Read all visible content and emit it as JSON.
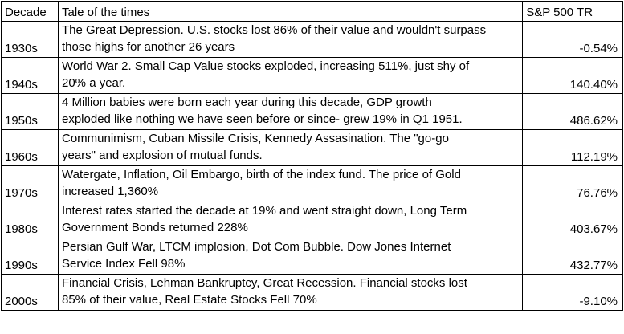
{
  "headers": {
    "decade": "Decade",
    "tale": "Tale of the times",
    "return": "S&P 500 TR"
  },
  "rows": [
    {
      "decade": "1930s",
      "tale_line1": "The Great Depression. U.S. stocks lost 86% of their value and wouldn't surpass",
      "tale_line2": "those highs for another 26 years",
      "return": "-0.54%"
    },
    {
      "decade": "1940s",
      "tale_line1": "World War 2. Small Cap Value stocks exploded, increasing 511%, just shy of",
      "tale_line2": "20% a year.",
      "return": "140.40%"
    },
    {
      "decade": "1950s",
      "tale_line1": "4 Million babies were born each year during this decade, GDP growth",
      "tale_line2": "exploded like nothing we have seen before or since- grew 19% in Q1 1951.",
      "return": "486.62%"
    },
    {
      "decade": "1960s",
      "tale_line1": "Communimism, Cuban Missile Crisis, Kennedy Assasination. The \"go-go",
      "tale_line2": "years\" and explosion  of mutual funds.",
      "return": "112.19%"
    },
    {
      "decade": "1970s",
      "tale_line1": "Watergate, Inflation, Oil Embargo, birth of the index fund. The price of Gold",
      "tale_line2": "increased 1,360%",
      "return": "76.76%"
    },
    {
      "decade": "1980s",
      "tale_line1": "Interest rates started the decade at 19% and went straight down, Long Term",
      "tale_line2": "Government Bonds returned 228%",
      "return": "403.67%"
    },
    {
      "decade": "1990s",
      "tale_line1": "Persian Gulf War, LTCM implosion, Dot Com Bubble. Dow Jones Internet",
      "tale_line2": "Service Index Fell 98%",
      "return": "432.77%"
    },
    {
      "decade": "2000s",
      "tale_line1": "Financial Crisis, Lehman Bankruptcy, Great Recession. Financial stocks lost",
      "tale_line2": "85% of their value, Real Estate Stocks Fell 70%",
      "return": "-9.10%"
    }
  ]
}
